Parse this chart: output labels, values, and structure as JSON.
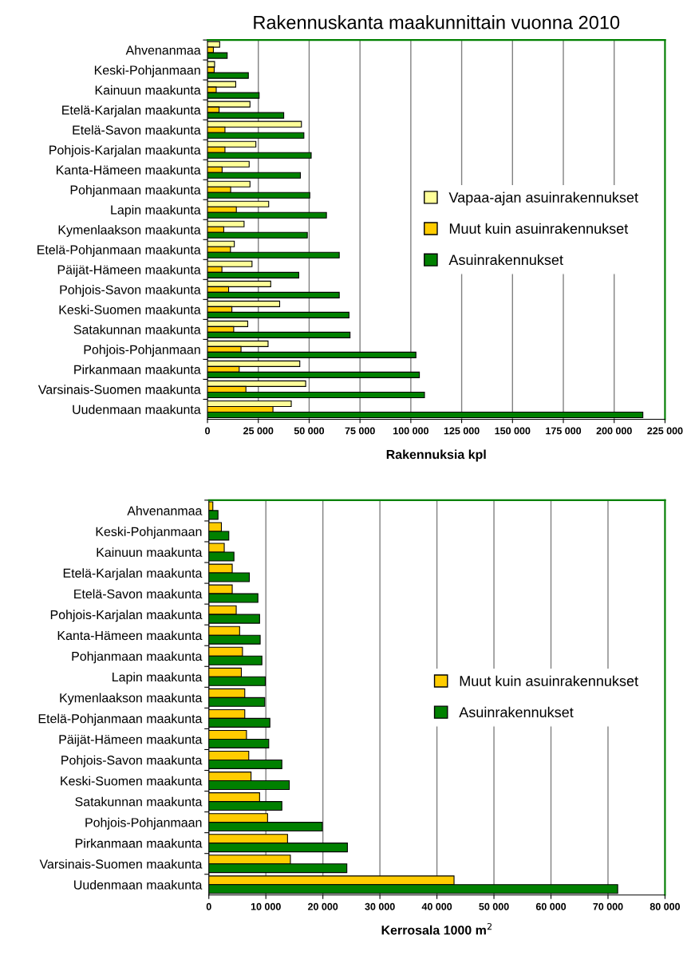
{
  "chart_data": [
    {
      "type": "bar",
      "orientation": "horizontal",
      "title": "Rakennuskanta maakunnittain vuonna 2010",
      "xlabel": "Rakennuksia kpl",
      "categories": [
        "Ahvenanmaa",
        "Keski-Pohjanmaan",
        "Kainuun maakunta",
        "Etelä-Karjalan maakunta",
        "Etelä-Savon maakunta",
        "Pohjois-Karjalan maakunta",
        "Kanta-Hämeen maakunta",
        "Pohjanmaan maakunta",
        "Lapin maakunta",
        "Kymenlaakson maakunta",
        "Etelä-Pohjanmaan maakunta",
        "Päijät-Hämeen maakunta",
        "Pohjois-Savon maakunta",
        "Keski-Suomen maakunta",
        "Satakunnan maakunta",
        "Pohjois-Pohjanmaan",
        "Pirkanmaan maakunta",
        "Varsinais-Suomen maakunta",
        "Uudenmaan maakunta"
      ],
      "series": [
        {
          "name": "Vapaa-ajan asuinrakennukset",
          "color": "#ffff99",
          "values": [
            6000,
            3500,
            13900,
            20900,
            46200,
            23800,
            20500,
            20900,
            30100,
            18000,
            13200,
            21900,
            31100,
            35500,
            19800,
            29800,
            45400,
            48300,
            41200
          ]
        },
        {
          "name": "Muut kuin asuinrakennukset",
          "color": "#ffcc00",
          "values": [
            2900,
            3300,
            4300,
            5700,
            8600,
            8600,
            7200,
            11400,
            14200,
            8000,
            11300,
            7100,
            10400,
            12000,
            12900,
            16500,
            15600,
            18900,
            32200
          ]
        },
        {
          "name": "Asuinrakennukset",
          "color": "#008000",
          "values": [
            9700,
            20100,
            25400,
            37500,
            47400,
            51000,
            45700,
            50300,
            58500,
            49100,
            64800,
            44900,
            64800,
            69600,
            70100,
            102500,
            104200,
            106700,
            214100
          ]
        }
      ],
      "xlim": [
        0,
        225000
      ],
      "xticks": [
        0,
        {
          "value": 25000,
          "label": "25 000"
        },
        {
          "value": 50000,
          "label": "50 000"
        },
        {
          "value": 75000,
          "label": "75 000"
        },
        {
          "value": 100000,
          "label": "100 000"
        },
        {
          "value": 125000,
          "label": "125 000"
        },
        {
          "value": 150000,
          "label": "150 000"
        },
        {
          "value": 175000,
          "label": "175 000"
        },
        {
          "value": 200000,
          "label": "200 000"
        },
        {
          "value": 225000,
          "label": "225 000"
        }
      ],
      "grid": "x",
      "legend": "center right"
    },
    {
      "type": "bar",
      "orientation": "horizontal",
      "xlabel": "Kerrosala 1000 m$^{2}$",
      "categories": [
        "Ahvenanmaa",
        "Keski-Pohjanmaan",
        "Kainuun maakunta",
        "Etelä-Karjalan maakunta",
        "Etelä-Savon maakunta",
        "Pohjois-Karjalan maakunta",
        "Kanta-Hämeen maakunta",
        "Pohjanmaan maakunta",
        "Lapin maakunta",
        "Kymenlaakson maakunta",
        "Etelä-Pohjanmaan maakunta",
        "Päijät-Hämeen maakunta",
        "Pohjois-Savon maakunta",
        "Keski-Suomen maakunta",
        "Satakunnan maakunta",
        "Pohjois-Pohjanmaan",
        "Pirkanmaan maakunta",
        "Varsinais-Suomen maakunta",
        "Uudenmaan maakunta"
      ],
      "series": [
        {
          "name": "Muut kuin asuinrakennukset",
          "color": "#ffcc00",
          "values": [
            700,
            2200,
            2700,
            4100,
            4100,
            4800,
            5400,
            5900,
            5700,
            6300,
            6300,
            6600,
            7000,
            7400,
            8900,
            10300,
            13800,
            14300,
            43000
          ]
        },
        {
          "name": "Asuinrakennukset",
          "color": "#008000",
          "values": [
            1600,
            3500,
            4400,
            7100,
            8600,
            8900,
            9000,
            9300,
            9900,
            9800,
            10700,
            10500,
            12800,
            14100,
            12800,
            19900,
            24300,
            24200,
            71700
          ]
        }
      ],
      "xlim": [
        0,
        80000
      ],
      "xticks": [
        0,
        {
          "value": 10000,
          "label": "10 000"
        },
        {
          "value": 20000,
          "label": "20 000"
        },
        {
          "value": 30000,
          "label": "30 000"
        },
        {
          "value": 40000,
          "label": "40 000"
        },
        {
          "value": 50000,
          "label": "50 000"
        },
        {
          "value": 60000,
          "label": "60 000"
        },
        {
          "value": 70000,
          "label": "70 000"
        },
        {
          "value": 80000,
          "label": "80 000"
        }
      ],
      "grid": "x",
      "legend": "center right"
    }
  ]
}
